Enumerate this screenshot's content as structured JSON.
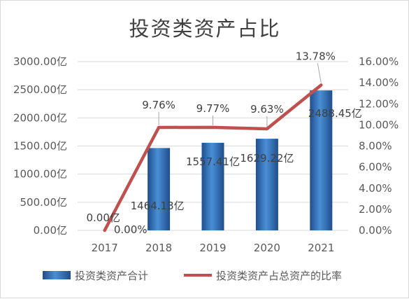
{
  "chart_data": {
    "type": "bar+line",
    "title": "投资类资产占比",
    "categories": [
      "2017",
      "2018",
      "2019",
      "2020",
      "2021"
    ],
    "series": [
      {
        "name": "投资类资产合计",
        "type": "bar",
        "axis": "left",
        "values": [
          0.0,
          1464.13,
          1557.41,
          1629.22,
          2488.45
        ],
        "labels": [
          "0.00亿",
          "1464.13亿",
          "1557.41亿",
          "1629.22亿",
          "2488.45亿"
        ],
        "color": "#2e75b6"
      },
      {
        "name": "投资类资产占总资产的比率",
        "type": "line",
        "axis": "right",
        "values": [
          0.0,
          9.76,
          9.77,
          9.63,
          13.78
        ],
        "labels": [
          "0.00%",
          "9.76%",
          "9.77%",
          "9.63%",
          "13.78%"
        ],
        "color": "#c0504d"
      }
    ],
    "y_left": {
      "ylim": [
        0,
        3000
      ],
      "ticks": [
        "0.00亿",
        "500.00亿",
        "1000.00亿",
        "1500.00亿",
        "2000.00亿",
        "2500.00亿",
        "3000.00亿"
      ]
    },
    "y_right": {
      "ylim": [
        0,
        16
      ],
      "ticks": [
        "0.00%",
        "2.00%",
        "4.00%",
        "6.00%",
        "8.00%",
        "10.00%",
        "12.00%",
        "14.00%",
        "16.00%"
      ]
    },
    "grid": true,
    "legend_position": "bottom"
  }
}
